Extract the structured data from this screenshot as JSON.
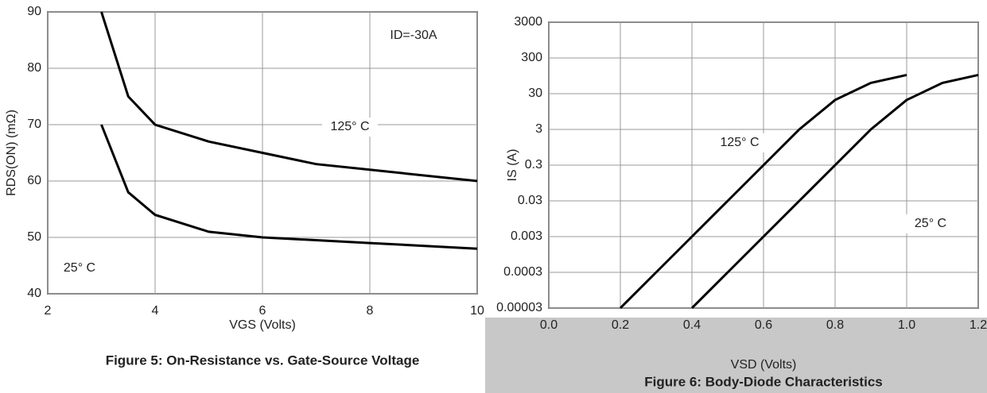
{
  "chart_data": [
    {
      "type": "line",
      "title": "Figure 5: On-Resistance vs. Gate-Source Voltage",
      "xlabel": "VGS (Volts)",
      "ylabel": "RDS(ON) (mΩ)",
      "annotations": [
        "ID=-30A"
      ],
      "xlim": [
        2,
        10
      ],
      "xticks": [
        2,
        4,
        6,
        8,
        10
      ],
      "ylim": [
        40,
        90
      ],
      "yticks": [
        40,
        50,
        60,
        70,
        80,
        90
      ],
      "grid": true,
      "log_y": false,
      "series": [
        {
          "name": "125° C",
          "color": "#000000",
          "x": [
            3,
            3.5,
            4,
            5,
            6,
            7,
            8,
            10
          ],
          "values": [
            90,
            75,
            70,
            67,
            65,
            63,
            62,
            60
          ]
        },
        {
          "name": "25° C",
          "color": "#000000",
          "x": [
            3,
            3.5,
            4,
            5,
            6,
            8,
            10
          ],
          "values": [
            70,
            58,
            54,
            51,
            50,
            49,
            48
          ]
        }
      ]
    },
    {
      "type": "line",
      "title": "Figure 6: Body-Diode Characteristics",
      "xlabel": "VSD (Volts)",
      "ylabel": "IS (A)",
      "xlim": [
        0,
        1.2
      ],
      "xticks": [
        {
          "value": 0,
          "label": "0.0"
        },
        0.2,
        0.4,
        0.6,
        0.8,
        {
          "value": 1,
          "label": "1.0"
        },
        1.2
      ],
      "ylim": [
        3e-05,
        3000
      ],
      "yticks": [
        3e-05,
        0.0003,
        0.003,
        0.03,
        0.3,
        3,
        30,
        300,
        3000
      ],
      "grid": true,
      "log_y": true,
      "series": [
        {
          "name": "125° C",
          "color": "#000000",
          "x": [
            0.2,
            0.3,
            0.4,
            0.5,
            0.6,
            0.7,
            0.8,
            0.9,
            1.0
          ],
          "values": [
            3e-05,
            0.0003,
            0.003,
            0.03,
            0.3,
            3,
            20,
            60,
            100
          ]
        },
        {
          "name": "25° C",
          "color": "#000000",
          "x": [
            0.4,
            0.5,
            0.6,
            0.7,
            0.8,
            0.9,
            1.0,
            1.1,
            1.2
          ],
          "values": [
            3e-05,
            0.0003,
            0.003,
            0.03,
            0.3,
            3,
            20,
            60,
            100
          ]
        }
      ]
    }
  ]
}
